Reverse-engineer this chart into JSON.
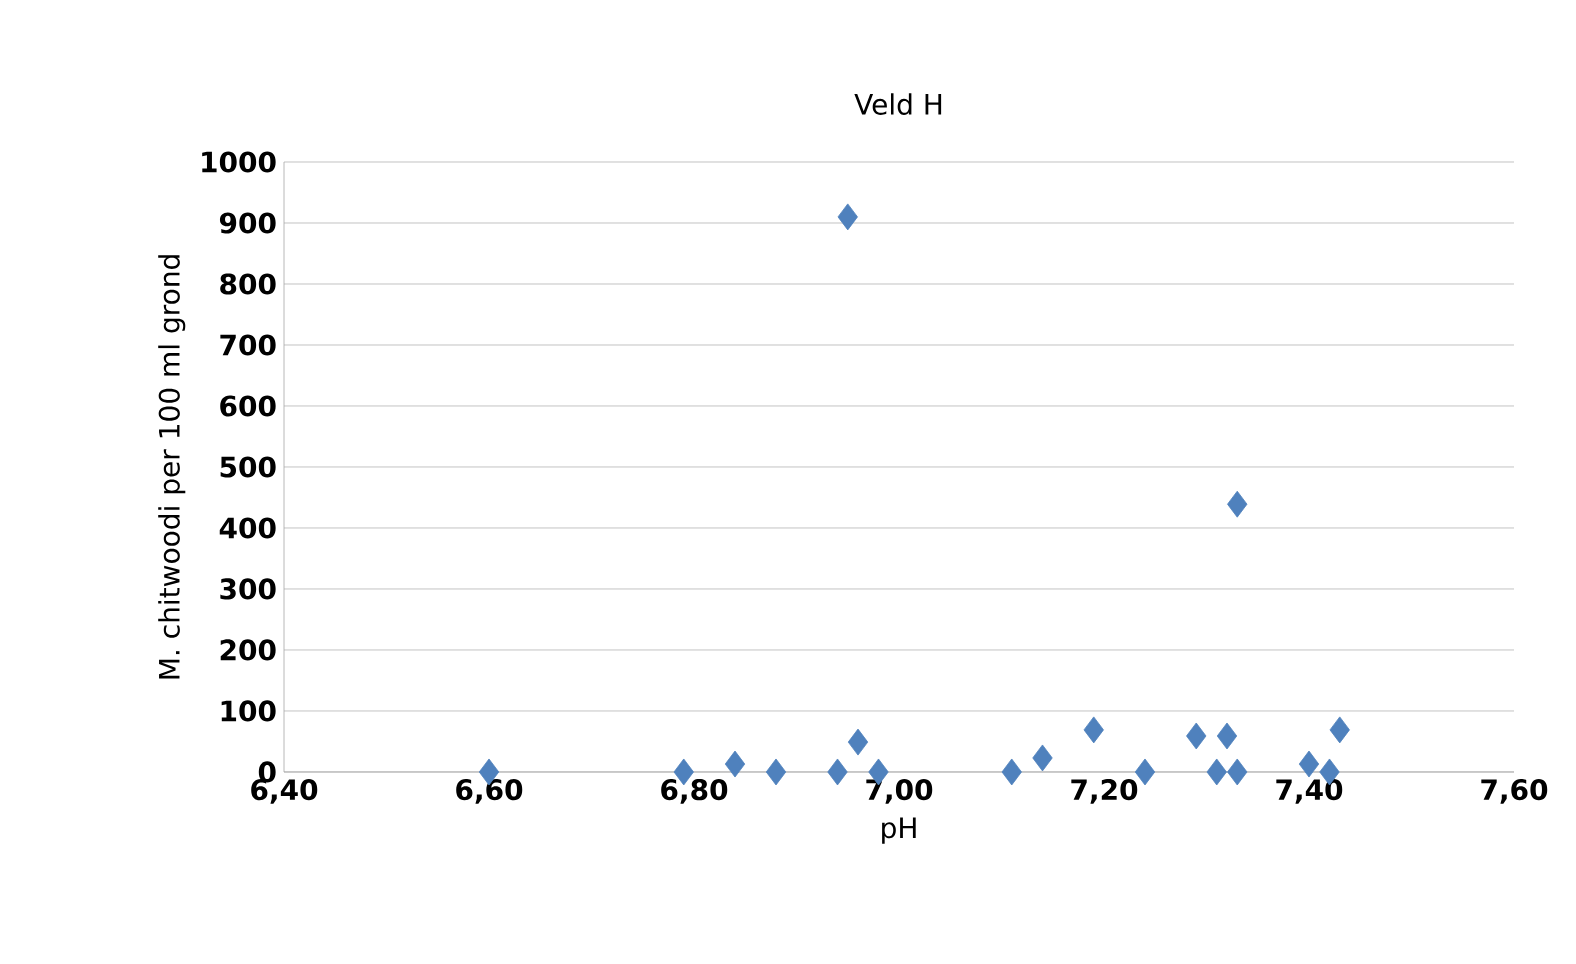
{
  "chart_data": {
    "type": "scatter",
    "title": "Veld H",
    "xlabel": "pH",
    "ylabel": "M. chitwoodi per 100  ml grond",
    "x": [
      6.6,
      6.79,
      6.84,
      6.88,
      6.94,
      6.95,
      6.96,
      6.98,
      7.11,
      7.14,
      7.19,
      7.24,
      7.29,
      7.31,
      7.32,
      7.33,
      7.33,
      7.4,
      7.42,
      7.43
    ],
    "values": [
      0,
      0,
      13,
      0,
      0,
      910,
      49,
      0,
      0,
      23,
      69,
      0,
      59,
      0,
      59,
      439,
      0,
      13,
      0,
      69
    ],
    "color": "#4f81bd",
    "marker": "diamond",
    "grid": "y",
    "xlim": [
      6.4,
      7.6
    ],
    "xticks": [
      {
        "value": 6.4,
        "label": "6,40"
      },
      {
        "value": 6.6,
        "label": "6,60"
      },
      {
        "value": 6.8,
        "label": "6,80"
      },
      {
        "value": 7.0,
        "label": "7,00"
      },
      {
        "value": 7.2,
        "label": "7,20"
      },
      {
        "value": 7.4,
        "label": "7,40"
      },
      {
        "value": 7.6,
        "label": "7,60"
      }
    ],
    "ylim": [
      0,
      1000
    ],
    "yticks": [
      0,
      100,
      200,
      300,
      400,
      500,
      600,
      700,
      800,
      900,
      1000
    ]
  }
}
